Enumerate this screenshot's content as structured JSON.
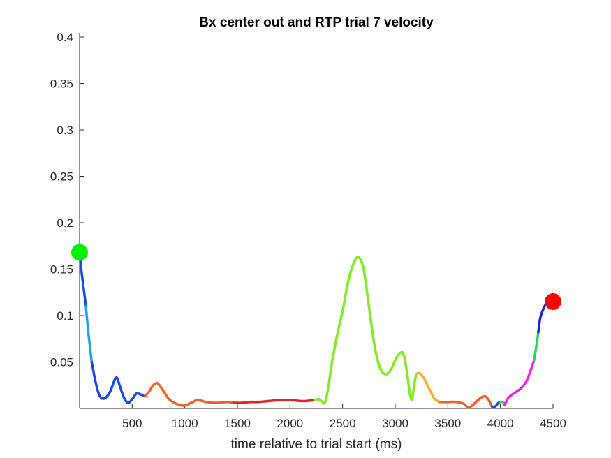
{
  "chart_data": {
    "type": "line",
    "title": "Bx  center out and RTP trial 7 velocity",
    "xlabel": "time relative to trial start (ms)",
    "ylabel": "",
    "xlim": [
      0,
      4500
    ],
    "ylim": [
      0,
      0.4
    ],
    "xticks": [
      "500",
      "1000",
      "1500",
      "2000",
      "2500",
      "3000",
      "3500",
      "4000",
      "4500"
    ],
    "yticks": [
      "0.05",
      "0.1",
      "0.15",
      "0.2",
      "0.25",
      "0.3",
      "0.35",
      "0.4"
    ],
    "grid": false,
    "segments": [
      {
        "color": "#1848e8",
        "points": [
          [
            0,
            0.168
          ],
          [
            15,
            0.15
          ],
          [
            40,
            0.128
          ],
          [
            60,
            0.11
          ]
        ]
      },
      {
        "color": "#20a0e8",
        "points": [
          [
            60,
            0.11
          ],
          [
            80,
            0.085
          ],
          [
            100,
            0.065
          ],
          [
            115,
            0.05
          ]
        ]
      },
      {
        "color": "#1848e8",
        "points": [
          [
            115,
            0.05
          ],
          [
            140,
            0.035
          ],
          [
            170,
            0.02
          ],
          [
            200,
            0.012
          ],
          [
            240,
            0.011
          ],
          [
            290,
            0.018
          ],
          [
            330,
            0.03
          ],
          [
            355,
            0.033
          ],
          [
            380,
            0.025
          ],
          [
            420,
            0.012
          ],
          [
            460,
            0.006
          ],
          [
            500,
            0.01
          ],
          [
            540,
            0.016
          ],
          [
            580,
            0.015
          ],
          [
            620,
            0.013
          ]
        ]
      },
      {
        "color": "#f06020",
        "points": [
          [
            620,
            0.013
          ],
          [
            660,
            0.018
          ],
          [
            700,
            0.025
          ],
          [
            740,
            0.027
          ],
          [
            790,
            0.02
          ],
          [
            850,
            0.01
          ],
          [
            920,
            0.005
          ],
          [
            990,
            0.003
          ],
          [
            1060,
            0.006
          ],
          [
            1120,
            0.009
          ],
          [
            1200,
            0.007
          ],
          [
            1300,
            0.006
          ],
          [
            1400,
            0.007
          ],
          [
            1470,
            0.006
          ]
        ]
      },
      {
        "color": "#e82020",
        "points": [
          [
            1470,
            0.006
          ],
          [
            1540,
            0.006
          ],
          [
            1620,
            0.007
          ],
          [
            1700,
            0.007
          ],
          [
            1800,
            0.008
          ],
          [
            1900,
            0.009
          ],
          [
            2000,
            0.009
          ],
          [
            2100,
            0.008
          ],
          [
            2150,
            0.008
          ],
          [
            2240,
            0.009
          ]
        ]
      },
      {
        "color": "#80ec20",
        "points": [
          [
            2240,
            0.009
          ],
          [
            2270,
            0.01
          ],
          [
            2300,
            0.008
          ],
          [
            2330,
            0.006
          ],
          [
            2360,
            0.02
          ],
          [
            2400,
            0.05
          ],
          [
            2450,
            0.08
          ],
          [
            2500,
            0.105
          ],
          [
            2560,
            0.14
          ],
          [
            2620,
            0.16
          ],
          [
            2660,
            0.162
          ],
          [
            2700,
            0.15
          ],
          [
            2750,
            0.11
          ],
          [
            2800,
            0.07
          ],
          [
            2850,
            0.045
          ],
          [
            2900,
            0.037
          ],
          [
            2950,
            0.04
          ],
          [
            3000,
            0.052
          ],
          [
            3050,
            0.06
          ],
          [
            3080,
            0.058
          ],
          [
            3110,
            0.04
          ],
          [
            3140,
            0.015
          ],
          [
            3160,
            0.01
          ],
          [
            3180,
            0.025
          ],
          [
            3200,
            0.037
          ]
        ]
      },
      {
        "color": "#f8b020",
        "points": [
          [
            3200,
            0.037
          ],
          [
            3230,
            0.038
          ],
          [
            3270,
            0.033
          ],
          [
            3320,
            0.022
          ],
          [
            3370,
            0.011
          ],
          [
            3420,
            0.007
          ]
        ]
      },
      {
        "color": "#f06020",
        "points": [
          [
            3420,
            0.007
          ],
          [
            3500,
            0.007
          ],
          [
            3580,
            0.007
          ],
          [
            3650,
            0.005
          ],
          [
            3700,
            0.001
          ],
          [
            3760,
            0.006
          ],
          [
            3820,
            0.012
          ],
          [
            3870,
            0.012
          ],
          [
            3920,
            0.002
          ]
        ]
      },
      {
        "color": "#1848e8",
        "points": [
          [
            3920,
            0.002
          ],
          [
            3950,
            0.002
          ],
          [
            3980,
            0.006
          ],
          [
            4000,
            0.007
          ]
        ]
      },
      {
        "color": "#20d860",
        "points": [
          [
            4000,
            0.007
          ],
          [
            4020,
            0.007
          ],
          [
            4040,
            0.004
          ]
        ]
      },
      {
        "color": "#f020e0",
        "points": [
          [
            4040,
            0.004
          ],
          [
            4080,
            0.012
          ],
          [
            4150,
            0.018
          ],
          [
            4200,
            0.022
          ],
          [
            4250,
            0.03
          ],
          [
            4300,
            0.045
          ],
          [
            4320,
            0.052
          ]
        ]
      },
      {
        "color": "#20d860",
        "points": [
          [
            4320,
            0.052
          ],
          [
            4340,
            0.066
          ],
          [
            4360,
            0.082
          ]
        ]
      },
      {
        "color": "#2020d8",
        "points": [
          [
            4360,
            0.082
          ],
          [
            4380,
            0.098
          ],
          [
            4420,
            0.11
          ],
          [
            4450,
            0.114
          ],
          [
            4500,
            0.115
          ]
        ]
      }
    ],
    "markers": [
      {
        "x": 0,
        "y": 0.168,
        "color": "#00f000"
      },
      {
        "x": 4500,
        "y": 0.115,
        "color": "#ff0000"
      }
    ]
  }
}
